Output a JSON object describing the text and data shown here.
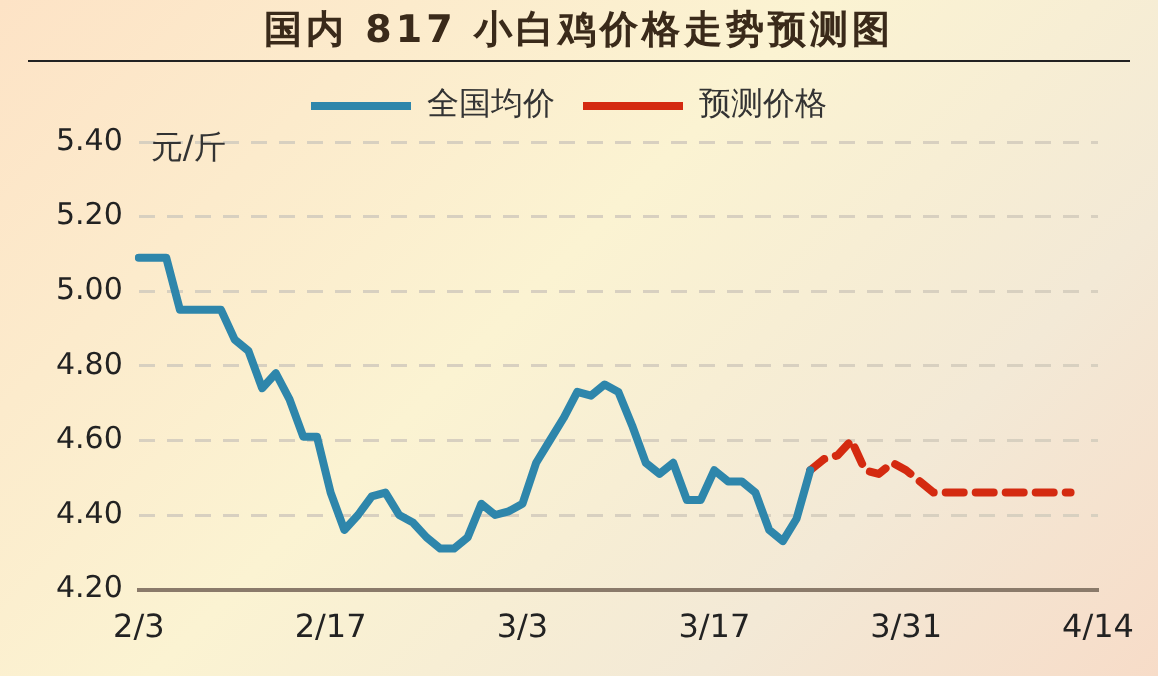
{
  "chart_data": {
    "type": "line",
    "title": "国内 817 小白鸡价格走势预测图",
    "ylabel": "元/斤",
    "categories": [
      "2/3",
      null,
      null,
      null,
      null,
      null,
      null,
      null,
      null,
      null,
      null,
      null,
      null,
      null,
      "2/17",
      null,
      null,
      null,
      null,
      null,
      null,
      null,
      null,
      null,
      null,
      null,
      null,
      null,
      "3/3",
      null,
      null,
      null,
      null,
      null,
      null,
      null,
      null,
      null,
      null,
      null,
      null,
      null,
      "3/17",
      null,
      null,
      null,
      null,
      null,
      null,
      null,
      null,
      null,
      null,
      null,
      null,
      null,
      "3/31",
      null,
      null,
      null,
      null,
      null,
      null,
      null,
      null,
      null,
      null,
      null,
      null,
      null,
      "4/14"
    ],
    "series": [
      {
        "name": "全国均价",
        "color": "#2e86ab",
        "line_style": "solid",
        "values": [
          5.09,
          5.09,
          5.09,
          4.95,
          4.95,
          4.95,
          4.95,
          4.87,
          4.84,
          4.74,
          4.78,
          4.71,
          4.61,
          4.61,
          4.46,
          4.36,
          4.4,
          4.45,
          4.46,
          4.4,
          4.38,
          4.34,
          4.31,
          4.31,
          4.34,
          4.43,
          4.4,
          4.41,
          4.43,
          4.54,
          4.6,
          4.66,
          4.73,
          4.72,
          4.75,
          4.73,
          4.64,
          4.54,
          4.51,
          4.54,
          4.44,
          4.44,
          4.52,
          4.49,
          4.49,
          4.46,
          4.36,
          4.33,
          4.39,
          4.52,
          null,
          null,
          null,
          null,
          null,
          null,
          null,
          null,
          null,
          null,
          null,
          null,
          null,
          null,
          null,
          null,
          null,
          null,
          null,
          null,
          null
        ]
      },
      {
        "name": "预测价格",
        "color": "#d42a10",
        "line_style": "dashed",
        "values": [
          null,
          null,
          null,
          null,
          null,
          null,
          null,
          null,
          null,
          null,
          null,
          null,
          null,
          null,
          null,
          null,
          null,
          null,
          null,
          null,
          null,
          null,
          null,
          null,
          null,
          null,
          null,
          null,
          null,
          null,
          null,
          null,
          null,
          null,
          null,
          null,
          null,
          null,
          null,
          null,
          null,
          null,
          null,
          null,
          null,
          null,
          null,
          null,
          null,
          4.52,
          4.55,
          4.56,
          4.6,
          4.52,
          4.51,
          4.54,
          4.52,
          4.49,
          4.46,
          4.46,
          4.46,
          4.46,
          4.46,
          4.46,
          4.46,
          4.46,
          4.46,
          4.46,
          4.46,
          null,
          null
        ]
      }
    ],
    "ylim": [
      4.2,
      5.4
    ],
    "yticks": [
      {
        "value": 4.2,
        "label": "4.20"
      },
      {
        "value": 4.4,
        "label": "4.40"
      },
      {
        "value": 4.6,
        "label": "4.60"
      },
      {
        "value": 4.8,
        "label": "4.80"
      },
      {
        "value": 5.0,
        "label": "5.00"
      },
      {
        "value": 5.2,
        "label": "5.20"
      },
      {
        "value": 5.4,
        "label": "5.40"
      }
    ],
    "grid": "y",
    "legend": "top",
    "marker": "none"
  }
}
